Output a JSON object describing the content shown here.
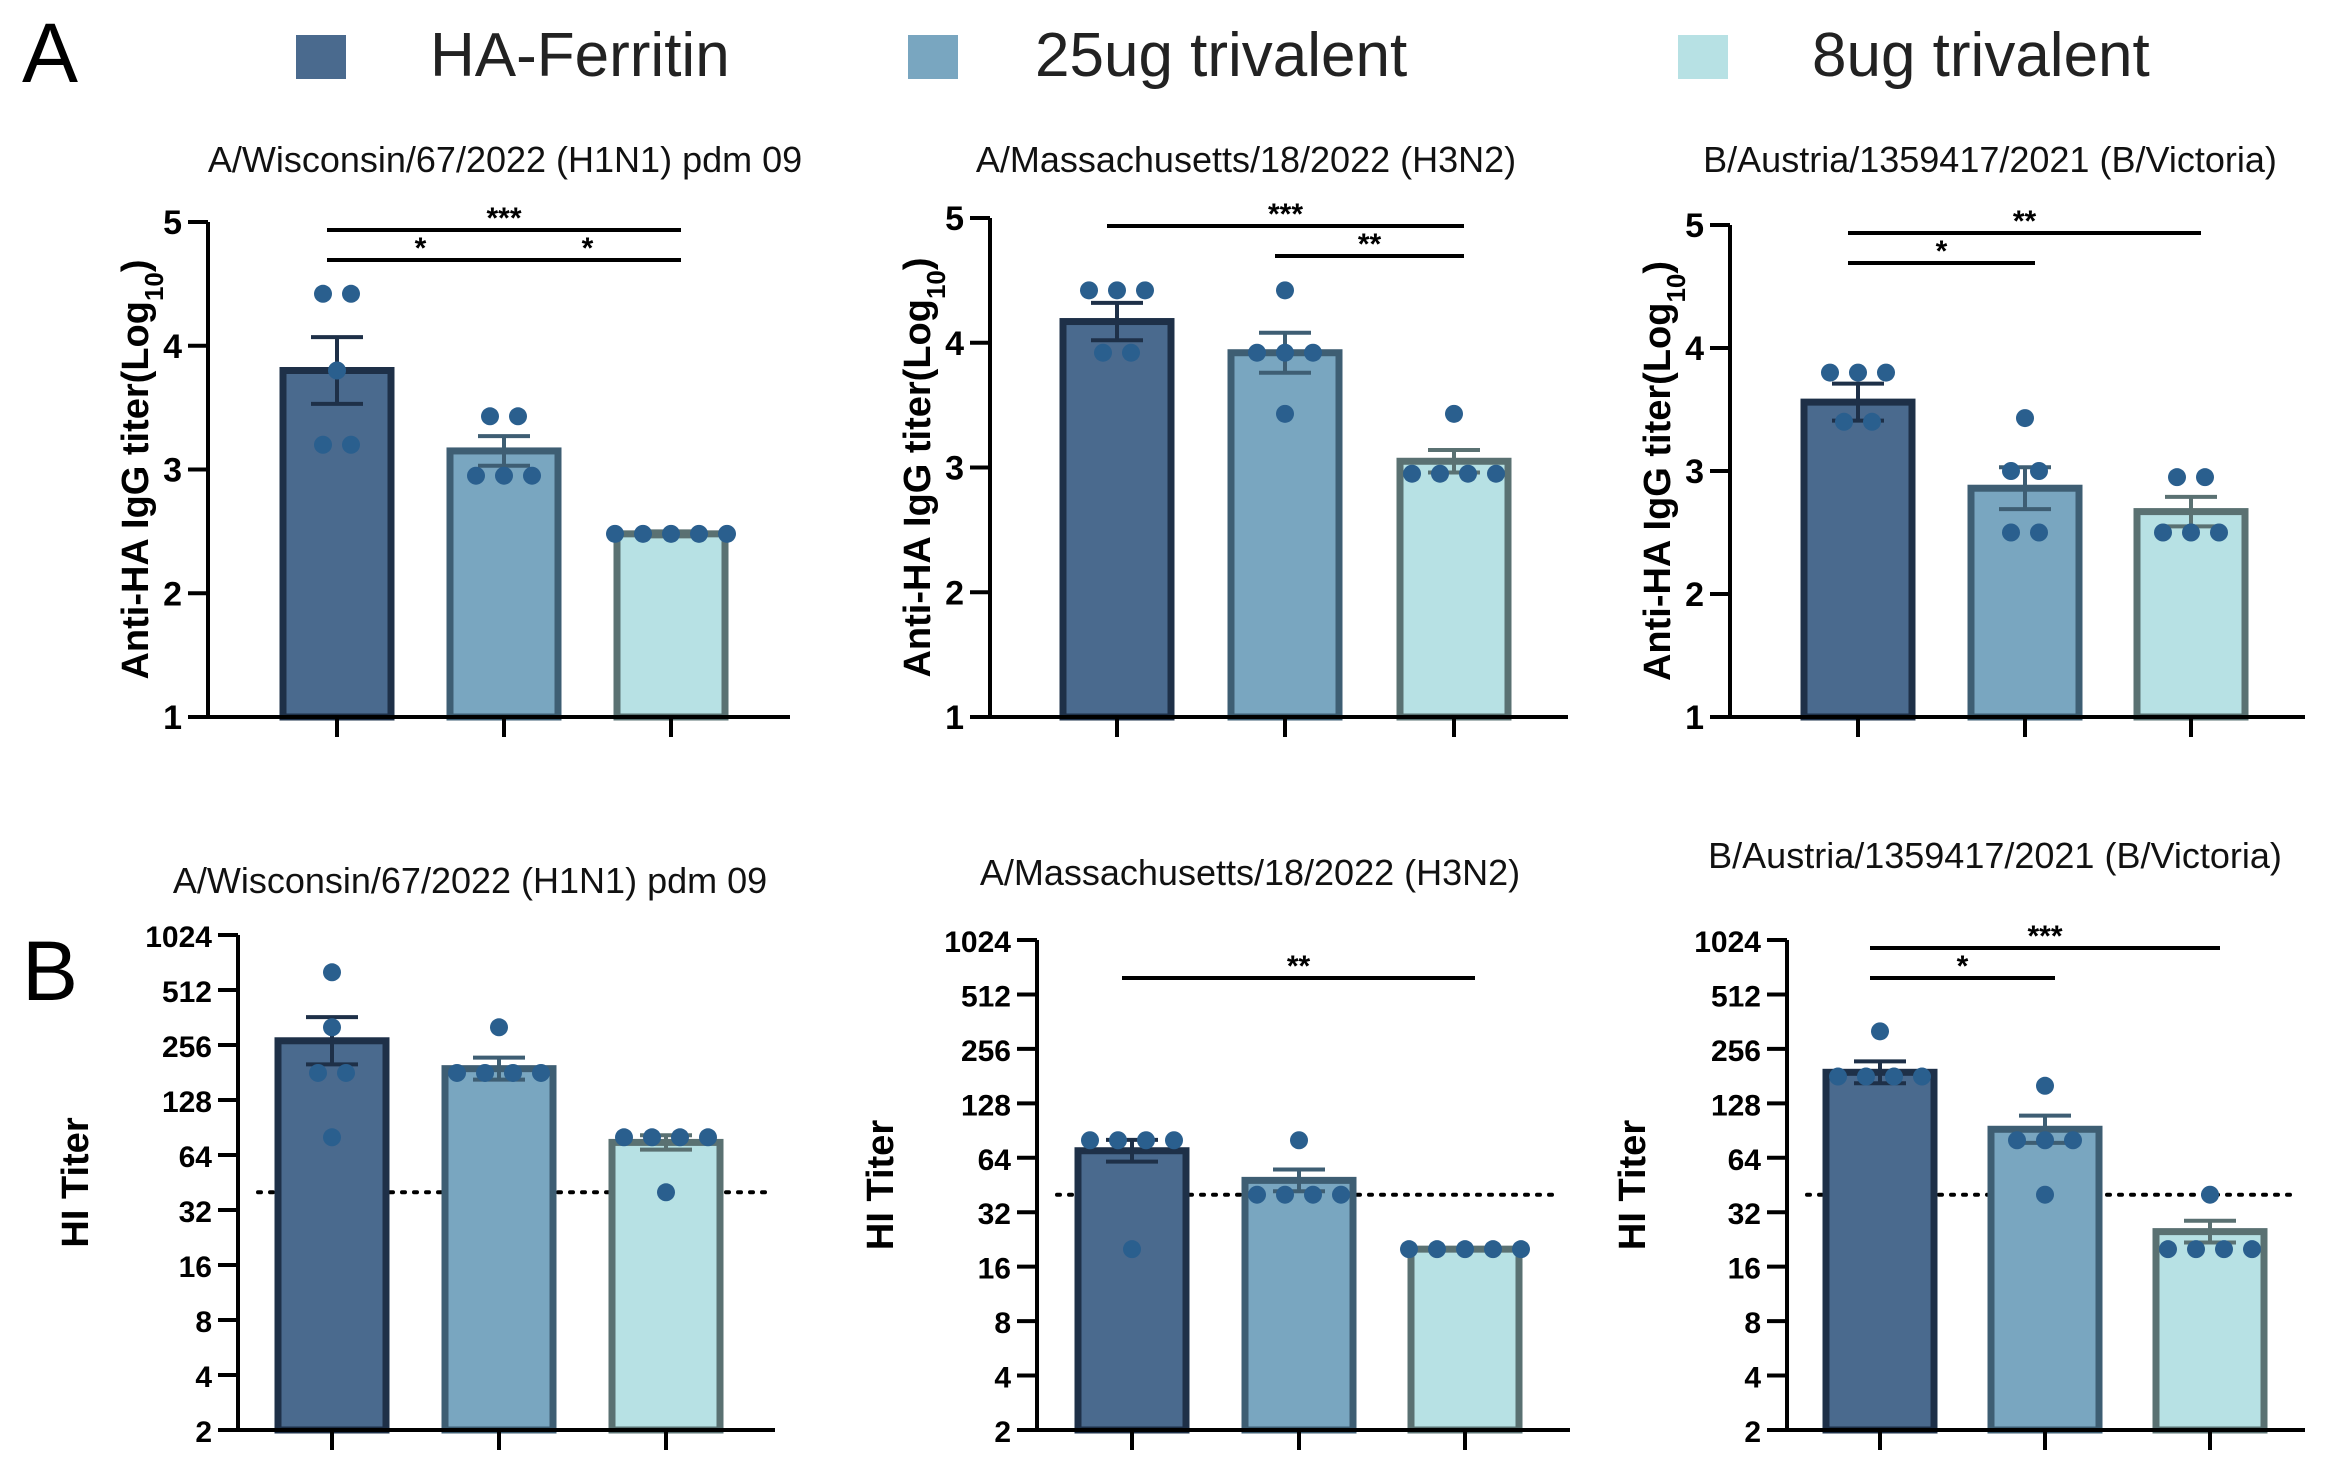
{
  "panel_labels": [
    "A",
    "B"
  ],
  "legend": [
    {
      "name": "HA-Ferritin",
      "color": "#4a6a8e"
    },
    {
      "name": "25ug trivalent",
      "color": "#79a6c0"
    },
    {
      "name": "8ug trivalent",
      "color": "#b7e1e4"
    }
  ],
  "style": {
    "border_colors": [
      "#1e3048",
      "#3e5e73",
      "#5a7172"
    ],
    "dot_color": "#2a5f8e",
    "axis_color": "#000000"
  },
  "chart_data": [
    {
      "id": "A1",
      "panel": "A",
      "type": "bar",
      "title": "A/Wisconsin/67/2022 (H1N1) pdm 09",
      "ylabel_main": "Anti-HA IgG titer(Log",
      "ylabel_sub": "10",
      "ylabel_end": ")",
      "ylim": [
        1,
        5
      ],
      "yscale": "linear",
      "yticks": [
        1,
        2,
        3,
        4,
        5
      ],
      "ytick_labels": [
        "1",
        "2",
        "3",
        "4",
        "5"
      ],
      "categories": [
        "HA-Ferritin",
        "25ug trivalent",
        "8ug trivalent"
      ],
      "values": [
        3.8,
        3.15,
        2.48
      ],
      "errors": [
        0.27,
        0.12,
        0.02
      ],
      "points": [
        [
          4.42,
          4.42,
          3.8,
          3.2,
          3.2
        ],
        [
          3.43,
          3.43,
          2.95,
          2.95,
          2.95
        ],
        [
          2.48,
          2.48,
          2.48,
          2.48,
          2.48
        ]
      ],
      "significance": [
        {
          "from": 0,
          "to": 1,
          "label": "*",
          "level": 1
        },
        {
          "from": 1,
          "to": 2,
          "label": "*",
          "level": 1
        },
        {
          "from": 0,
          "to": 2,
          "label": "***",
          "level": 2
        }
      ],
      "threshold": null
    },
    {
      "id": "A2",
      "panel": "A",
      "type": "bar",
      "title": "A/Massachusetts/18/2022 (H3N2)",
      "ylabel_main": "Anti-HA IgG titer(Log",
      "ylabel_sub": "10",
      "ylabel_end": ")",
      "ylim": [
        1,
        5
      ],
      "yscale": "linear",
      "yticks": [
        1,
        2,
        3,
        4,
        5
      ],
      "ytick_labels": [
        "1",
        "2",
        "3",
        "4",
        "5"
      ],
      "categories": [
        "HA-Ferritin",
        "25ug trivalent",
        "8ug trivalent"
      ],
      "values": [
        4.17,
        3.92,
        3.05
      ],
      "errors": [
        0.15,
        0.16,
        0.09
      ],
      "points": [
        [
          4.42,
          4.42,
          4.42,
          3.92,
          3.92
        ],
        [
          4.42,
          3.92,
          3.92,
          3.92,
          3.43
        ],
        [
          3.43,
          2.95,
          2.95,
          2.95,
          2.95
        ]
      ],
      "significance": [
        {
          "from": 1,
          "to": 2,
          "label": "**",
          "level": 1
        },
        {
          "from": 0,
          "to": 2,
          "label": "***",
          "level": 2
        }
      ],
      "threshold": null
    },
    {
      "id": "A3",
      "panel": "A",
      "type": "bar",
      "title": "B/Austria/1359417/2021 (B/Victoria)",
      "ylabel_main": "Anti-HA IgG titer(Log",
      "ylabel_sub": "10",
      "ylabel_end": ")",
      "ylim": [
        1,
        5
      ],
      "yscale": "linear",
      "yticks": [
        1,
        2,
        3,
        4,
        5
      ],
      "ytick_labels": [
        "1",
        "2",
        "3",
        "4",
        "5"
      ],
      "categories": [
        "HA-Ferritin",
        "25ug trivalent",
        "8ug trivalent"
      ],
      "values": [
        3.56,
        2.86,
        2.67
      ],
      "errors": [
        0.15,
        0.17,
        0.12
      ],
      "points": [
        [
          3.8,
          3.8,
          3.8,
          3.4,
          3.4
        ],
        [
          3.43,
          3.0,
          3.0,
          2.5,
          2.5
        ],
        [
          2.95,
          2.95,
          2.5,
          2.5,
          2.5
        ]
      ],
      "significance": [
        {
          "from": 0,
          "to": 1,
          "label": "*",
          "level": 1
        },
        {
          "from": 0,
          "to": 2,
          "label": "**",
          "level": 2
        }
      ],
      "threshold": null
    },
    {
      "id": "B1",
      "panel": "B",
      "type": "bar",
      "title": "A/Wisconsin/67/2022 (H1N1) pdm 09",
      "ylabel_main": "HI Titer",
      "ylabel_sub": "",
      "ylabel_end": "",
      "ylim": [
        2,
        1024
      ],
      "yscale": "log2",
      "yticks": [
        2,
        4,
        8,
        16,
        32,
        64,
        128,
        256,
        512,
        1024
      ],
      "ytick_labels": [
        "2",
        "4",
        "8",
        "16",
        "32",
        "64",
        "128",
        "256",
        "512",
        "1024"
      ],
      "categories": [
        "HA-Ferritin",
        "25ug trivalent",
        "8ug trivalent"
      ],
      "values": [
        270,
        190,
        75
      ],
      "errors": [
        0.43,
        0.2,
        0.13
      ],
      "points": [
        [
          640,
          320,
          180,
          180,
          80
        ],
        [
          320,
          180,
          180,
          180,
          180
        ],
        [
          80,
          80,
          80,
          80,
          40
        ]
      ],
      "significance": [],
      "threshold": 40
    },
    {
      "id": "B2",
      "panel": "B",
      "type": "bar",
      "title": "A/Massachusetts/18/2022 (H3N2)",
      "ylabel_main": "HI Titer",
      "ylabel_sub": "",
      "ylabel_end": "",
      "ylim": [
        2,
        1024
      ],
      "yscale": "log2",
      "yticks": [
        2,
        4,
        8,
        16,
        32,
        64,
        128,
        256,
        512,
        1024
      ],
      "ytick_labels": [
        "2",
        "4",
        "8",
        "16",
        "32",
        "64",
        "128",
        "256",
        "512",
        "1024"
      ],
      "categories": [
        "HA-Ferritin",
        "25ug trivalent",
        "8ug trivalent"
      ],
      "values": [
        70,
        48,
        20
      ],
      "errors": [
        0.2,
        0.2,
        0.0
      ],
      "points": [
        [
          80,
          80,
          80,
          80,
          20
        ],
        [
          80,
          40,
          40,
          40,
          40
        ],
        [
          20,
          20,
          20,
          20,
          20
        ]
      ],
      "significance": [
        {
          "from": 0,
          "to": 2,
          "label": "**",
          "level": 1
        }
      ],
      "threshold": 40
    },
    {
      "id": "B3",
      "panel": "B",
      "type": "bar",
      "title": "B/Austria/1359417/2021 (B/Victoria)",
      "ylabel_main": "HI Titer",
      "ylabel_sub": "",
      "ylabel_end": "",
      "ylim": [
        2,
        1024
      ],
      "yscale": "log2",
      "yticks": [
        2,
        4,
        8,
        16,
        32,
        64,
        128,
        256,
        512,
        1024
      ],
      "ytick_labels": [
        "2",
        "4",
        "8",
        "16",
        "32",
        "64",
        "128",
        "256",
        "512",
        "1024"
      ],
      "categories": [
        "HA-Ferritin",
        "25ug trivalent",
        "8ug trivalent"
      ],
      "values": [
        190,
        92,
        25
      ],
      "errors": [
        0.2,
        0.25,
        0.2
      ],
      "points": [
        [
          320,
          180,
          180,
          180,
          180
        ],
        [
          160,
          80,
          80,
          80,
          40
        ],
        [
          40,
          20,
          20,
          20,
          20
        ]
      ],
      "significance": [
        {
          "from": 0,
          "to": 1,
          "label": "*",
          "level": 1
        },
        {
          "from": 0,
          "to": 2,
          "label": "***",
          "level": 2
        }
      ],
      "threshold": 40
    }
  ]
}
